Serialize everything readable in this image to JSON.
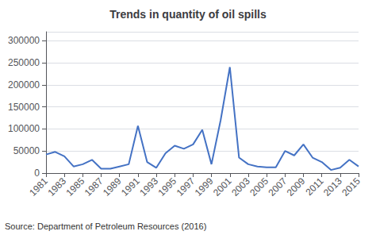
{
  "chart_data": {
    "type": "line",
    "title": "Trends in quantity of oil spills",
    "x": [
      1981,
      1982,
      1983,
      1984,
      1985,
      1986,
      1987,
      1988,
      1989,
      1990,
      1991,
      1992,
      1993,
      1994,
      1995,
      1996,
      1997,
      1998,
      1999,
      2000,
      2001,
      2002,
      2003,
      2004,
      2005,
      2006,
      2007,
      2008,
      2009,
      2010,
      2011,
      2012,
      2013,
      2014,
      2015
    ],
    "values": [
      42000,
      48000,
      38000,
      15000,
      20000,
      30000,
      10000,
      10000,
      15000,
      20000,
      107000,
      25000,
      12000,
      45000,
      62000,
      55000,
      65000,
      98000,
      20000,
      120000,
      240000,
      35000,
      20000,
      15000,
      13000,
      13000,
      50000,
      40000,
      65000,
      35000,
      25000,
      7000,
      12000,
      30000,
      15000
    ],
    "color": "#4472C4",
    "xlim": [
      1981,
      2015
    ],
    "xticks": [
      1981,
      1983,
      1985,
      1987,
      1989,
      1991,
      1993,
      1995,
      1997,
      1999,
      2001,
      2003,
      2005,
      2007,
      2009,
      2011,
      2013,
      2015
    ],
    "ylim": [
      0,
      320000
    ],
    "yticks": [
      0,
      50000,
      100000,
      150000,
      200000,
      250000,
      300000
    ],
    "grid": true,
    "annotations": [
      "Source: Department of Petroleum Resources (2016)"
    ]
  }
}
